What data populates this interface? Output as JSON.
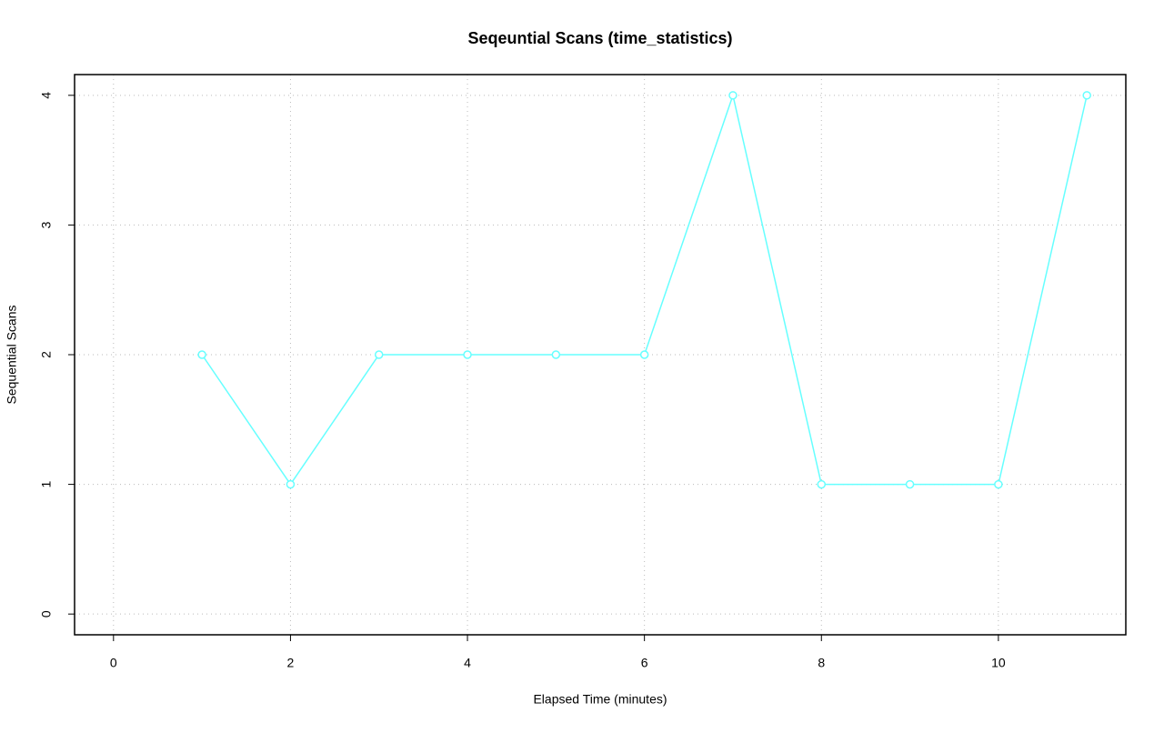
{
  "chart_data": {
    "type": "line",
    "title": "Seqeuntial Scans (time_statistics)",
    "x_label": "Elapsed Time (minutes)",
    "y_label": "Sequential Scans",
    "x": [
      1,
      2,
      3,
      4,
      5,
      6,
      7,
      8,
      9,
      10,
      11
    ],
    "series": [
      {
        "name": "Sequential Scans",
        "color": "#66ffff",
        "values": [
          2,
          1,
          2,
          2,
          2,
          2,
          4,
          1,
          1,
          1,
          4
        ]
      }
    ],
    "xlim": [
      -0.44,
      11.44
    ],
    "xticks": [
      0,
      2,
      4,
      6,
      8,
      10
    ],
    "ylim": [
      -0.16,
      4.16
    ],
    "yticks": [
      0,
      1,
      2,
      3,
      4
    ],
    "grid": true
  }
}
